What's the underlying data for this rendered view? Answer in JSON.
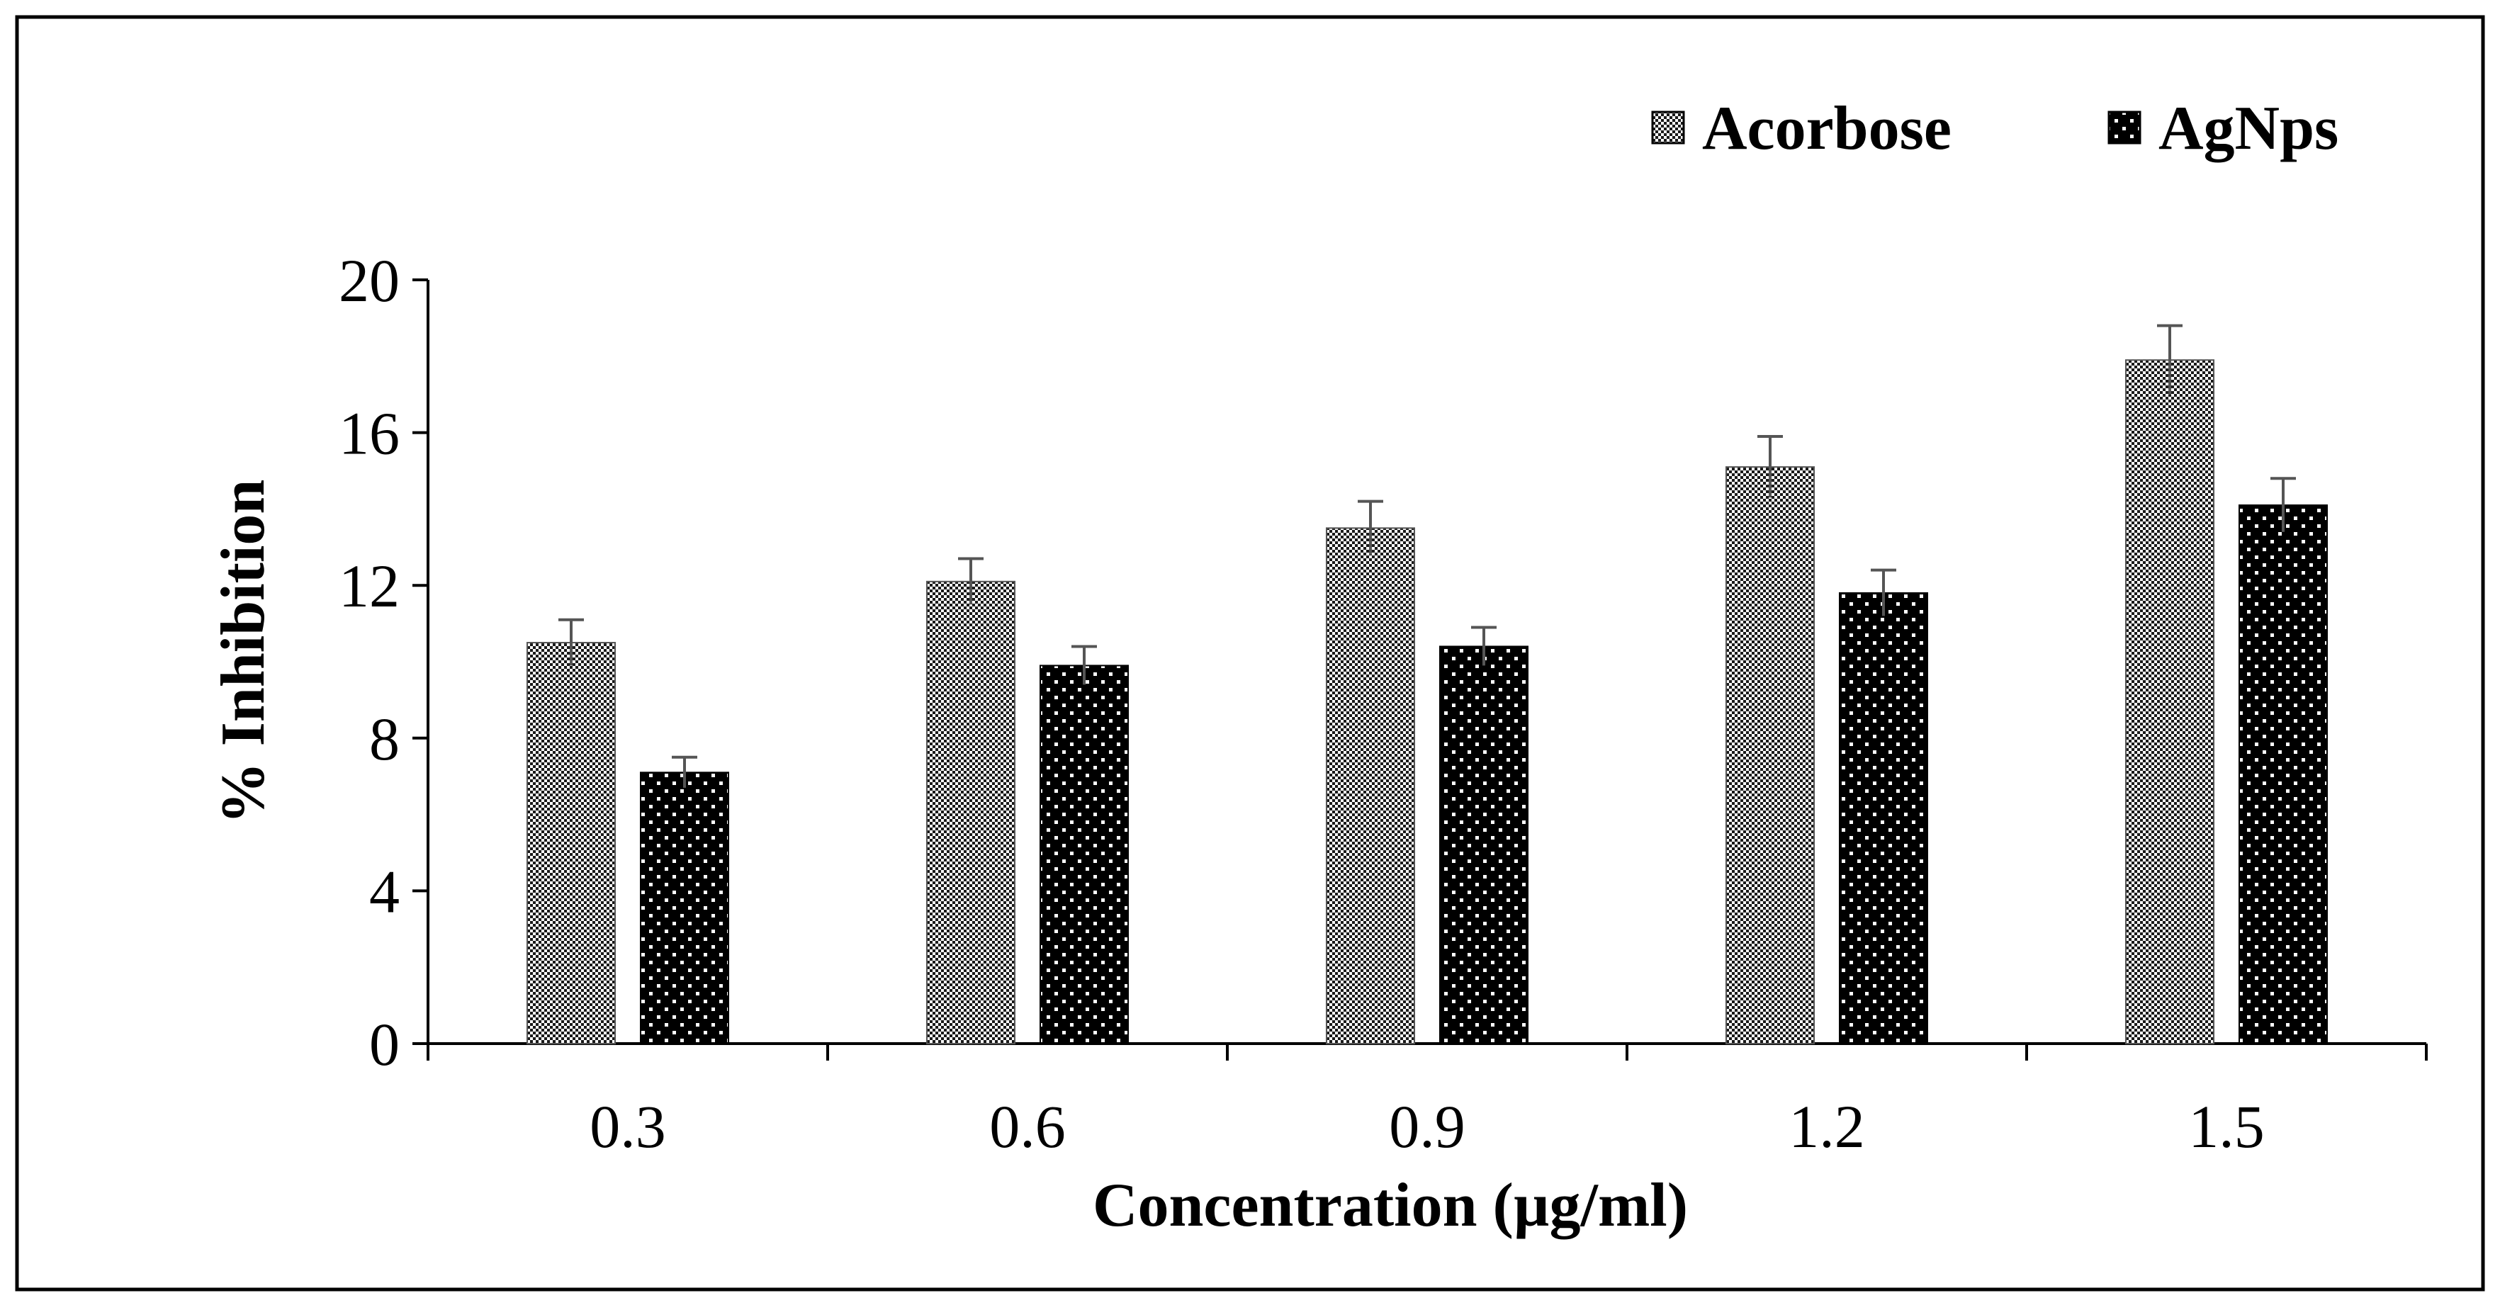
{
  "chart_data": {
    "type": "bar",
    "title": "",
    "xlabel": "Concentration (µg/ml)",
    "ylabel": "% Inhibition",
    "categories": [
      "0.3",
      "0.6",
      "0.9",
      "1.2",
      "1.5"
    ],
    "ylim": [
      0,
      20
    ],
    "yticks": [
      0,
      4,
      8,
      12,
      16,
      20
    ],
    "ytick_labels": [
      "0",
      "4",
      "8",
      "12",
      "16",
      "20"
    ],
    "legend_position": "top-right",
    "grid": false,
    "series": [
      {
        "name": "Acorbose",
        "values": [
          10.5,
          12.1,
          13.5,
          15.1,
          17.9
        ],
        "errors": [
          0.6,
          0.6,
          0.7,
          0.8,
          0.9
        ],
        "pattern": "fine-checker",
        "color": "#808080"
      },
      {
        "name": "AgNps",
        "values": [
          7.1,
          9.9,
          10.4,
          11.8,
          14.1
        ],
        "errors": [
          0.4,
          0.5,
          0.5,
          0.6,
          0.7
        ],
        "pattern": "white-dots-on-black",
        "color": "#000000"
      }
    ]
  }
}
